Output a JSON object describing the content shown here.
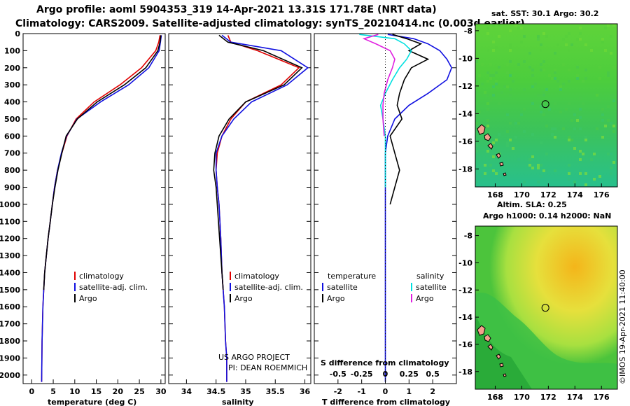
{
  "title": {
    "line1": "Argo profile: aoml 5904353_319 14-Apr-2021 13.31S 171.78E (NRT data)",
    "line2": "Climatology: CARS2009. Satellite-adjusted climatology: synTS_20210414.nc (0.003d earlier)"
  },
  "colors": {
    "climatology": "#e00000",
    "satellite": "#1010e0",
    "argo": "#000000",
    "sat_salinity": "#00e0e0",
    "argo_salinity_diff": "#e020e0"
  },
  "chart_data": [
    {
      "type": "line",
      "id": "temperature",
      "xlabel": "temperature (deg C)",
      "ylabel": "",
      "xlim": [
        -2,
        31
      ],
      "ylim": [
        2050,
        0
      ],
      "xticks": [
        0,
        5,
        10,
        15,
        20,
        25,
        30
      ],
      "yticks": [
        0,
        100,
        200,
        300,
        400,
        500,
        600,
        700,
        800,
        900,
        1000,
        1100,
        1200,
        1300,
        1400,
        1500,
        1600,
        1700,
        1800,
        1900,
        2000
      ],
      "legend": [
        "climatology",
        "satellite-adj. clim.",
        "Argo"
      ],
      "series": [
        {
          "name": "climatology",
          "color": "#e00000",
          "x": [
            29.8,
            29.5,
            28.8,
            25.5,
            20.5,
            14.5,
            10.3,
            8.2,
            7.0,
            6.0,
            5.3,
            4.8,
            4.3,
            3.8,
            3.4,
            3.0,
            2.8,
            2.6,
            2.5,
            2.4,
            2.3
          ],
          "y": [
            10,
            50,
            100,
            200,
            300,
            400,
            500,
            600,
            700,
            800,
            900,
            1000,
            1100,
            1200,
            1300,
            1400,
            1500,
            1600,
            1700,
            1800,
            2040
          ]
        },
        {
          "name": "satellite-adj. clim.",
          "color": "#1010e0",
          "x": [
            30.1,
            29.9,
            29.6,
            27.2,
            22.5,
            16.0,
            10.5,
            8.1,
            6.9,
            6.0,
            5.3,
            4.8,
            4.3,
            3.8,
            3.4,
            3.0,
            2.8,
            2.6,
            2.5,
            2.4,
            2.3
          ],
          "y": [
            10,
            50,
            100,
            200,
            300,
            400,
            500,
            600,
            700,
            800,
            900,
            1000,
            1100,
            1200,
            1300,
            1400,
            1500,
            1600,
            1700,
            1800,
            2040
          ]
        },
        {
          "name": "Argo",
          "color": "#000000",
          "x": [
            30.0,
            29.8,
            29.3,
            26.5,
            21.5,
            15.2,
            10.6,
            8.0,
            7.0,
            6.1,
            5.4,
            4.8,
            4.3,
            3.8,
            3.4,
            3.0,
            2.8
          ],
          "y": [
            10,
            50,
            100,
            200,
            300,
            400,
            500,
            600,
            700,
            800,
            900,
            1000,
            1100,
            1200,
            1300,
            1400,
            1500
          ]
        }
      ]
    },
    {
      "type": "line",
      "id": "salinity",
      "xlabel": "salinity",
      "xlim": [
        33.7,
        36.1
      ],
      "ylim": [
        2050,
        0
      ],
      "xticks": [
        34,
        34.5,
        35,
        35.5,
        36
      ],
      "legend": [
        "climatology",
        "satellite-adj. clim.",
        "Argo"
      ],
      "annotation": [
        "US ARGO PROJECT",
        "PI: DEAN ROEMMICH"
      ],
      "series": [
        {
          "name": "climatology",
          "color": "#e00000",
          "x": [
            34.7,
            34.75,
            35.2,
            35.9,
            35.6,
            35.0,
            34.75,
            34.6,
            34.52,
            34.5,
            34.52,
            34.55,
            34.58,
            34.6,
            34.62,
            34.64,
            34.66,
            34.68,
            34.68
          ],
          "y": [
            10,
            50,
            100,
            200,
            300,
            400,
            500,
            600,
            700,
            800,
            900,
            1000,
            1200,
            1400,
            1500,
            1600,
            1800,
            1900,
            2040
          ]
        },
        {
          "name": "satellite-adj. clim.",
          "color": "#1010e0",
          "x": [
            34.6,
            34.75,
            35.6,
            36.05,
            35.7,
            35.1,
            34.8,
            34.6,
            34.5,
            34.5,
            34.52,
            34.55,
            34.58,
            34.6,
            34.62,
            34.64,
            34.66,
            34.68,
            34.68
          ],
          "y": [
            10,
            50,
            100,
            200,
            300,
            400,
            500,
            600,
            700,
            800,
            900,
            1000,
            1200,
            1400,
            1500,
            1600,
            1800,
            1900,
            2040
          ]
        },
        {
          "name": "Argo",
          "color": "#000000",
          "x": [
            34.55,
            34.7,
            35.3,
            35.95,
            35.65,
            35.0,
            34.72,
            34.55,
            34.48,
            34.46,
            34.5,
            34.52,
            34.56,
            34.6,
            34.62
          ],
          "y": [
            10,
            50,
            100,
            200,
            300,
            400,
            500,
            600,
            700,
            800,
            900,
            1000,
            1200,
            1400,
            1500
          ]
        }
      ]
    },
    {
      "type": "line",
      "id": "difference",
      "xlabel": "T difference from climatology",
      "xlabel2": "S difference from climatology",
      "xlim": [
        -3,
        3
      ],
      "ylim": [
        2050,
        0
      ],
      "xticks": [
        -2,
        -1,
        0,
        1,
        2
      ],
      "xticklabels2": [
        "-0.5",
        "-0.25",
        "0",
        "0.25",
        "0.5"
      ],
      "legend_left": [
        "temperature",
        "satellite",
        "Argo"
      ],
      "legend_right": [
        "salinity",
        "satellite",
        "Argo"
      ],
      "series": [
        {
          "name": "T satellite",
          "color": "#1010e0",
          "x": [
            0.1,
            1.2,
            1.8,
            2.3,
            2.6,
            2.8,
            2.6,
            1.8,
            1.0,
            0.4,
            0.1,
            0.0,
            0.0,
            0.0,
            0.0
          ],
          "y": [
            5,
            30,
            60,
            100,
            150,
            200,
            270,
            350,
            420,
            500,
            600,
            700,
            900,
            1200,
            2040
          ]
        },
        {
          "name": "T Argo",
          "color": "#000000",
          "x": [
            0.3,
            0.9,
            1.5,
            1.0,
            1.8,
            1.1,
            0.8,
            0.6,
            0.5,
            0.7,
            0.2,
            0.4,
            0.6,
            0.4,
            0.2
          ],
          "y": [
            5,
            30,
            60,
            100,
            150,
            200,
            270,
            350,
            420,
            500,
            600,
            700,
            800,
            900,
            1000
          ]
        },
        {
          "name": "S satellite",
          "color": "#00e0e0",
          "x": [
            -1.1,
            0.4,
            0.8,
            1.1,
            0.9,
            0.6,
            0.3,
            0.0,
            -0.2,
            -0.1,
            0.0,
            0.0,
            0.0
          ],
          "y": [
            5,
            30,
            60,
            100,
            150,
            200,
            270,
            350,
            420,
            500,
            600,
            700,
            900
          ]
        },
        {
          "name": "S Argo",
          "color": "#e020e0",
          "x": [
            -0.3,
            -0.9,
            -0.4,
            0.2,
            0.4,
            0.3,
            0.1,
            -0.05,
            -0.1,
            -0.1,
            -0.05
          ],
          "y": [
            5,
            30,
            60,
            100,
            150,
            200,
            270,
            350,
            420,
            500,
            600
          ]
        }
      ]
    },
    {
      "type": "heatmap",
      "id": "sst_map",
      "title": "sat. SST: 30.1 Argo: 30.2",
      "xticks": [
        168,
        170,
        172,
        174,
        176
      ],
      "yticks": [
        -8,
        -10,
        -12,
        -14,
        -16,
        -18
      ],
      "xlim": [
        166.5,
        177.2
      ],
      "ylim": [
        -19.3,
        -7.5
      ],
      "marker": {
        "lon": 171.78,
        "lat": -13.31
      }
    },
    {
      "type": "heatmap",
      "id": "sla_map",
      "title1": "Altim. SLA: 0.25",
      "title2": "Argo h1000: 0.14 h2000: NaN",
      "xticks": [
        168,
        170,
        172,
        174,
        176
      ],
      "yticks": [
        -8,
        -10,
        -12,
        -14,
        -16,
        -18
      ],
      "xlim": [
        166.5,
        177.2
      ],
      "ylim": [
        -19.3,
        -7.3
      ],
      "marker": {
        "lon": 171.78,
        "lat": -13.31
      }
    }
  ],
  "credit": "©IMOS 19-Apr-2021 11:40:00"
}
